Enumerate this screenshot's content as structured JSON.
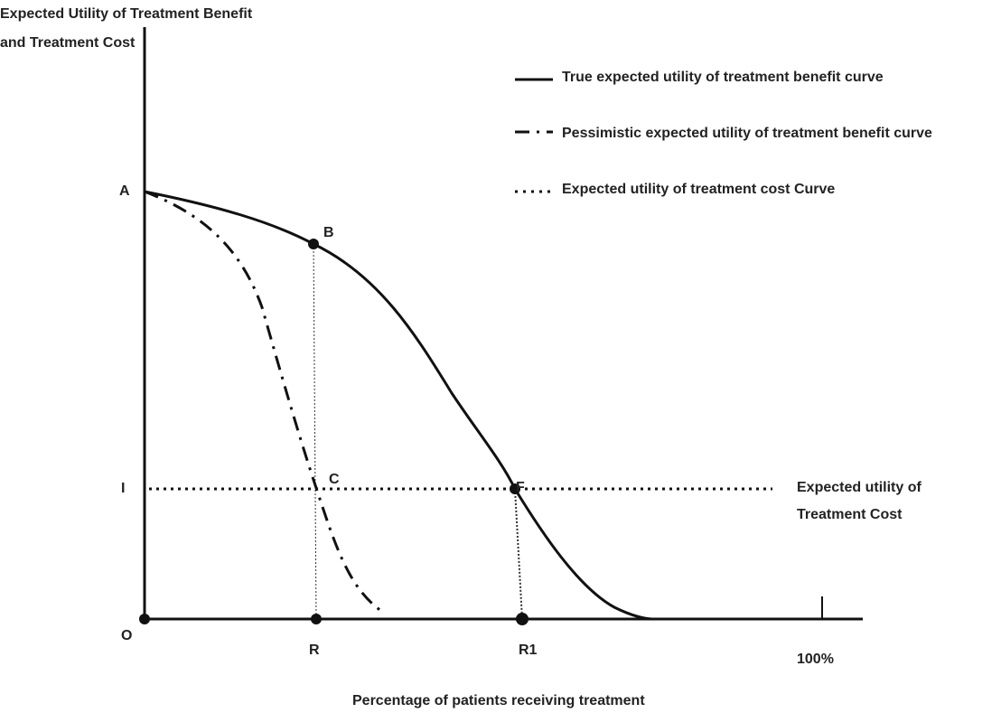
{
  "y_axis_label": [
    "Expected Utility of Treatment Benefit",
    "and Treatment Cost"
  ],
  "legend": [
    "True expected utility of treatment benefit curve",
    "Pessimistic expected utility of treatment benefit curve",
    "Expected utility of treatment cost Curve"
  ],
  "points": {
    "A": "A",
    "B": "B",
    "C": "C",
    "I": "I",
    "F": "F",
    "O": "O",
    "R": "R",
    "R1": "R1",
    "full": "100%"
  },
  "cost_label": [
    "Expected utility of",
    "Treatment Cost"
  ],
  "x_axis_label": "Percentage of patients receiving treatment"
}
